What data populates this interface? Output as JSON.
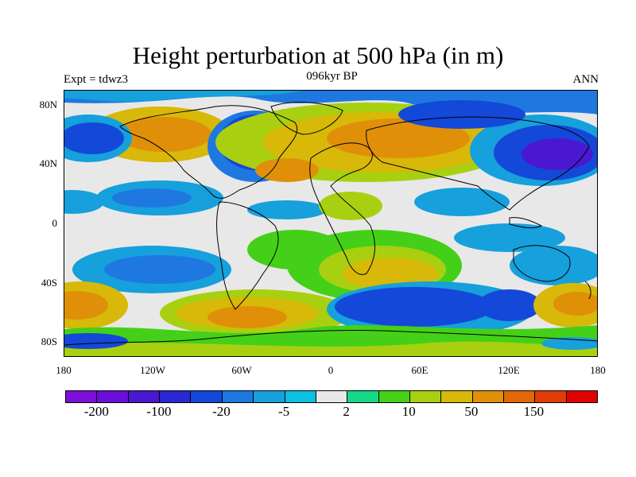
{
  "figure": {
    "title": "Height perturbation at 500 hPa (in m)",
    "left_label": "Expt = tdwz3",
    "center_label": "096kyr BP",
    "right_label": "ANN"
  },
  "map": {
    "projection": "cylindrical-equidistant",
    "lon_range": [
      -180,
      180
    ],
    "lat_range": [
      -90,
      90
    ],
    "lat_ticks": [
      {
        "value": 80,
        "label": "80N"
      },
      {
        "value": 40,
        "label": "40N"
      },
      {
        "value": 0,
        "label": "0"
      },
      {
        "value": -40,
        "label": "40S"
      },
      {
        "value": -80,
        "label": "80S"
      }
    ],
    "lon_ticks": [
      {
        "value": -180,
        "label": "180"
      },
      {
        "value": -120,
        "label": "120W"
      },
      {
        "value": -60,
        "label": "60W"
      },
      {
        "value": 0,
        "label": "0"
      },
      {
        "value": 60,
        "label": "60E"
      },
      {
        "value": 120,
        "label": "120E"
      },
      {
        "value": 180,
        "label": "180"
      }
    ],
    "background_color": "#e8e8e8",
    "coastline_color": "#000000"
  },
  "colorbar": {
    "colors": [
      "#7d10d8",
      "#6a0ed8",
      "#4a18d0",
      "#2a28d0",
      "#1448d8",
      "#1e78e0",
      "#16a0dc",
      "#0cc0e0",
      "#e8e8e8",
      "#14d888",
      "#44d018",
      "#a8d010",
      "#d8b808",
      "#e09008",
      "#e06808",
      "#e03c08",
      "#e00000"
    ],
    "labels": [
      "-200",
      "-100",
      "-20",
      "-5",
      "2",
      "10",
      "50",
      "150"
    ],
    "label_boundaries": [
      1,
      3,
      5,
      7,
      9,
      11,
      13,
      15
    ]
  }
}
